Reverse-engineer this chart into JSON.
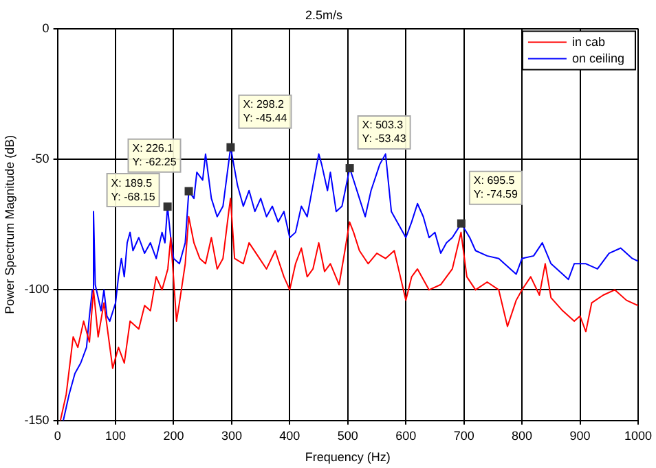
{
  "chart_data": {
    "type": "line",
    "title": "2.5m/s",
    "xlabel": "Frequency (Hz)",
    "ylabel": "Power Spectrum Magnitude (dB)",
    "xlim": [
      0,
      1000
    ],
    "xticks": [
      0,
      100,
      200,
      300,
      400,
      500,
      600,
      700,
      800,
      900,
      1000
    ],
    "ylim": [
      -150,
      0
    ],
    "yticks": [
      -150,
      -100,
      -50,
      0
    ],
    "grid": true,
    "legend": "top right",
    "marker": "none",
    "line_style": "solid",
    "series": [
      {
        "name": "in cab",
        "color": "#ff0000",
        "x": [
          5,
          15,
          27,
          35,
          45,
          55,
          62,
          70,
          80,
          95,
          105,
          115,
          125,
          140,
          150,
          160,
          170,
          180,
          190,
          195,
          205,
          210,
          220,
          226,
          235,
          245,
          255,
          265,
          275,
          285,
          295,
          298,
          305,
          320,
          330,
          345,
          360,
          375,
          390,
          400,
          410,
          420,
          430,
          440,
          450,
          460,
          470,
          485,
          495,
          503,
          510,
          520,
          535,
          550,
          565,
          580,
          600,
          610,
          620,
          640,
          660,
          680,
          695,
          705,
          720,
          740,
          760,
          775,
          790,
          800,
          815,
          830,
          840,
          850,
          870,
          890,
          900,
          910,
          920,
          940,
          960,
          980,
          1000
        ],
        "values": [
          -150,
          -140,
          -118,
          -122,
          -112,
          -120,
          -100,
          -118,
          -105,
          -130,
          -122,
          -128,
          -112,
          -115,
          -106,
          -108,
          -95,
          -100,
          -92,
          -80,
          -112,
          -105,
          -90,
          -72,
          -82,
          -88,
          -90,
          -80,
          -92,
          -88,
          -70,
          -65,
          -88,
          -90,
          -82,
          -87,
          -92,
          -85,
          -95,
          -100,
          -90,
          -84,
          -95,
          -92,
          -82,
          -93,
          -90,
          -98,
          -85,
          -74,
          -78,
          -85,
          -90,
          -86,
          -88,
          -85,
          -104,
          -95,
          -92,
          -100,
          -98,
          -92,
          -78,
          -95,
          -100,
          -97,
          -100,
          -114,
          -104,
          -100,
          -95,
          -102,
          -90,
          -103,
          -108,
          -112,
          -110,
          -116,
          -105,
          -102,
          -100,
          -104,
          -106
        ]
      },
      {
        "name": "on ceiling",
        "color": "#0000ff",
        "x": [
          10,
          20,
          30,
          40,
          50,
          55,
          60,
          62,
          65,
          70,
          75,
          80,
          85,
          90,
          100,
          105,
          110,
          115,
          120,
          125,
          130,
          140,
          150,
          160,
          170,
          180,
          185,
          189.5,
          195,
          200,
          210,
          220,
          226.1,
          235,
          240,
          250,
          255,
          265,
          275,
          285,
          298.2,
          310,
          320,
          330,
          340,
          350,
          360,
          370,
          380,
          390,
          400,
          410,
          420,
          430,
          440,
          450,
          455,
          465,
          470,
          480,
          490,
          503.3,
          510,
          520,
          530,
          540,
          555,
          565,
          575,
          590,
          600,
          610,
          620,
          630,
          640,
          650,
          660,
          670,
          680,
          695.5,
          710,
          720,
          740,
          760,
          780,
          790,
          800,
          820,
          835,
          850,
          870,
          880,
          890,
          910,
          930,
          950,
          970,
          990,
          1000
        ],
        "values": [
          -150,
          -140,
          -132,
          -128,
          -122,
          -110,
          -100,
          -70,
          -98,
          -103,
          -108,
          -100,
          -110,
          -112,
          -105,
          -95,
          -88,
          -95,
          -82,
          -78,
          -85,
          -80,
          -86,
          -82,
          -88,
          -78,
          -82,
          -68.15,
          -80,
          -88,
          -90,
          -82,
          -62.25,
          -65,
          -55,
          -58,
          -48,
          -65,
          -72,
          -68,
          -45.44,
          -60,
          -68,
          -62,
          -70,
          -65,
          -72,
          -68,
          -74,
          -70,
          -80,
          -78,
          -68,
          -72,
          -60,
          -48,
          -52,
          -62,
          -55,
          -70,
          -68,
          -53.43,
          -58,
          -65,
          -72,
          -62,
          -52,
          -48,
          -70,
          -76,
          -80,
          -74,
          -67,
          -72,
          -80,
          -78,
          -86,
          -82,
          -80,
          -74.59,
          -80,
          -85,
          -87,
          -88,
          -92,
          -94,
          -88,
          -87,
          -82,
          -90,
          -94,
          -96,
          -90,
          -90,
          -92,
          -86,
          -84,
          -88,
          -89
        ]
      }
    ],
    "annotations": [
      {
        "text": "X: 189.5\nY: -68.15",
        "x": 189.5,
        "y": -68.15
      },
      {
        "text": "X: 226.1\nY: -62.25",
        "x": 226.1,
        "y": -62.25
      },
      {
        "text": "X: 298.2\nY: -45.44",
        "x": 298.2,
        "y": -45.44
      },
      {
        "text": "X: 503.3\nY: -53.43",
        "x": 503.3,
        "y": -53.43
      },
      {
        "text": "X: 695.5\nY: -74.59",
        "x": 695.5,
        "y": -74.59
      }
    ]
  }
}
